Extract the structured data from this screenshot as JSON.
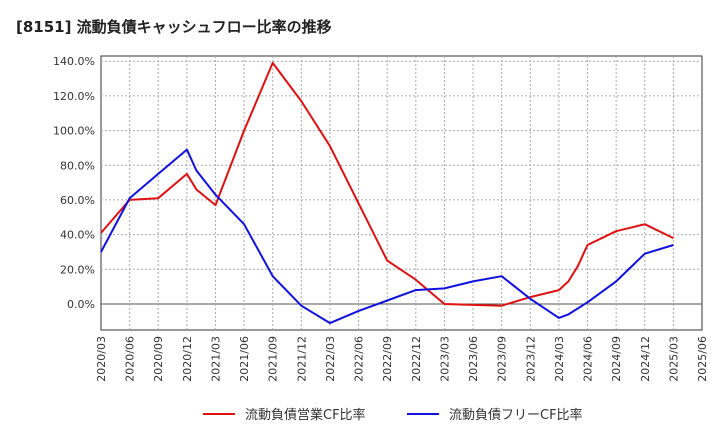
{
  "chart_data": {
    "type": "line",
    "title": "[8151]  流動負債キャッシュフロー比率の推移",
    "xlabel": "",
    "ylabel": "",
    "x_ticks": [
      "2020/03",
      "2020/06",
      "2020/09",
      "2020/12",
      "2021/03",
      "2021/06",
      "2021/09",
      "2021/12",
      "2022/03",
      "2022/06",
      "2022/09",
      "2022/12",
      "2023/03",
      "2023/06",
      "2023/09",
      "2023/12",
      "2024/03",
      "2024/06",
      "2024/09",
      "2024/12",
      "2025/03",
      "2025/06"
    ],
    "y_ticks": [
      0,
      20,
      40,
      60,
      80,
      100,
      120,
      140
    ],
    "y_tick_suffix": "%",
    "ylim": [
      -15,
      143
    ],
    "grid": true,
    "legend_position": "bottom",
    "series": [
      {
        "name": "流動負債営業CF比率",
        "color": "#dd1111",
        "points": [
          [
            "2020/03",
            41
          ],
          [
            "2020/06",
            60
          ],
          [
            "2020/09",
            61
          ],
          [
            "2020/12",
            75
          ],
          [
            "2021/01",
            66
          ],
          [
            "2021/03",
            57
          ],
          [
            "2021/06",
            100
          ],
          [
            "2021/09",
            139
          ],
          [
            "2021/12",
            117
          ],
          [
            "2022/03",
            91
          ],
          [
            "2022/06",
            58
          ],
          [
            "2022/09",
            25
          ],
          [
            "2022/12",
            14
          ],
          [
            "2023/03",
            0
          ],
          [
            "2023/06",
            -0.5
          ],
          [
            "2023/09",
            -1
          ],
          [
            "2023/12",
            4
          ],
          [
            "2024/03",
            8
          ],
          [
            "2024/04",
            13
          ],
          [
            "2024/05",
            22
          ],
          [
            "2024/06",
            34
          ],
          [
            "2024/09",
            42
          ],
          [
            "2024/12",
            46
          ],
          [
            "2025/03",
            38
          ]
        ]
      },
      {
        "name": "流動負債フリーCF比率",
        "color": "#1111dd",
        "points": [
          [
            "2020/03",
            30
          ],
          [
            "2020/06",
            61
          ],
          [
            "2020/09",
            75
          ],
          [
            "2020/12",
            89
          ],
          [
            "2021/01",
            77
          ],
          [
            "2021/03",
            63
          ],
          [
            "2021/06",
            46
          ],
          [
            "2021/09",
            16
          ],
          [
            "2021/12",
            -1
          ],
          [
            "2022/03",
            -11
          ],
          [
            "2022/06",
            -4
          ],
          [
            "2022/09",
            2
          ],
          [
            "2022/12",
            8
          ],
          [
            "2023/03",
            9
          ],
          [
            "2023/06",
            13
          ],
          [
            "2023/09",
            16
          ],
          [
            "2023/12",
            3
          ],
          [
            "2024/03",
            -8
          ],
          [
            "2024/04",
            -6
          ],
          [
            "2024/06",
            1
          ],
          [
            "2024/09",
            13
          ],
          [
            "2024/12",
            29
          ],
          [
            "2025/03",
            34
          ]
        ]
      }
    ]
  }
}
